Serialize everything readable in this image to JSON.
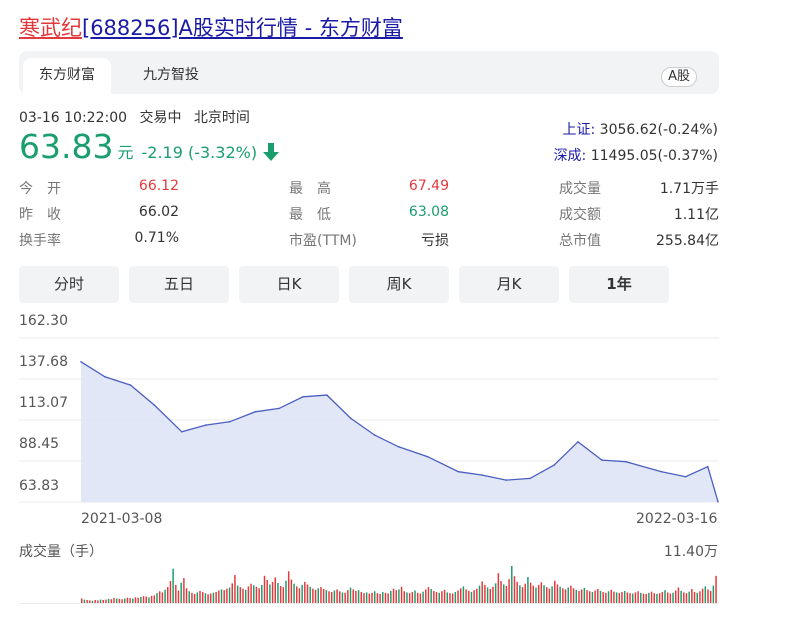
{
  "title": {
    "name": "寒武纪",
    "rest": "[688256]A股实时行情 - 东方财富"
  },
  "tabs": [
    {
      "label": "东方财富",
      "active": true
    },
    {
      "label": "九方智投",
      "active": false
    }
  ],
  "market_badge": "A股",
  "status": {
    "time": "03-16 10:22:00",
    "state": "交易中",
    "tz": "北京时间"
  },
  "quote": {
    "price": "63.83",
    "unit": "元",
    "change": "-2.19 (-3.32%)",
    "direction": "down",
    "color_down": "#1a9e6e",
    "color_up": "#e4393c"
  },
  "indices": [
    {
      "label": "上证:",
      "value": "3056.62(-0.24%)"
    },
    {
      "label": "深成:",
      "value": "11495.05(-0.37%)"
    }
  ],
  "stats": [
    [
      {
        "label": "今　开",
        "value": "66.12",
        "tone": "up"
      },
      {
        "label": "最　高",
        "value": "67.49",
        "tone": "up"
      },
      {
        "label": "成交量",
        "value": "1.71万手",
        "tone": "neutral"
      }
    ],
    [
      {
        "label": "昨　收",
        "value": "66.02",
        "tone": "neutral"
      },
      {
        "label": "最　低",
        "value": "63.08",
        "tone": "down"
      },
      {
        "label": "成交额",
        "value": "1.11亿",
        "tone": "neutral"
      }
    ],
    [
      {
        "label": "换手率",
        "value": "0.71%",
        "tone": "neutral"
      },
      {
        "label": "市盈(TTM)",
        "value": "亏损",
        "tone": "neutral"
      },
      {
        "label": "总市值",
        "value": "255.84亿",
        "tone": "neutral"
      }
    ]
  ],
  "periods": [
    {
      "label": "分时",
      "active": false
    },
    {
      "label": "五日",
      "active": false
    },
    {
      "label": "日K",
      "active": false
    },
    {
      "label": "周K",
      "active": false
    },
    {
      "label": "月K",
      "active": false
    },
    {
      "label": "1年",
      "active": true
    }
  ],
  "chart_data": {
    "type": "area",
    "y_ticks": [
      "162.30",
      "137.68",
      "113.07",
      "88.45",
      "63.83"
    ],
    "ylim": [
      63.83,
      162.3
    ],
    "x_labels": [
      "2021-03-08",
      "2022-03-16"
    ],
    "x": [
      "2021-03-08",
      "2021-03-22",
      "2021-04-06",
      "2021-04-20",
      "2021-05-06",
      "2021-05-20",
      "2021-06-03",
      "2021-06-18",
      "2021-07-02",
      "2021-07-16",
      "2021-07-30",
      "2021-08-13",
      "2021-08-27",
      "2021-09-10",
      "2021-09-27",
      "2021-10-15",
      "2021-10-29",
      "2021-11-12",
      "2021-11-26",
      "2021-12-10",
      "2021-12-24",
      "2022-01-07",
      "2022-01-21",
      "2022-02-11",
      "2022-02-25",
      "2022-03-10",
      "2022-03-16"
    ],
    "values": [
      148,
      139,
      134,
      122,
      106,
      110,
      112,
      118,
      120,
      127,
      128,
      114,
      104,
      97,
      91,
      82,
      80,
      77,
      78,
      86,
      100,
      89,
      88,
      82,
      79,
      85,
      64
    ],
    "color": "#4a5fc1",
    "fill": "#dfe4f7",
    "grid": true,
    "volume": {
      "title": "成交量（手）",
      "max_label": "11.40万",
      "colors": {
        "up": "#e4393c",
        "down": "#1a9e6e"
      },
      "values": [
        1.2,
        0.9,
        0.8,
        0.7,
        0.6,
        0.8,
        0.7,
        0.9,
        0.8,
        0.9,
        1.1,
        1.0,
        1.3,
        1.2,
        1.1,
        1.0,
        1.2,
        1.4,
        1.3,
        1.2,
        1.5,
        1.4,
        1.6,
        1.8,
        1.7,
        1.5,
        1.9,
        2.0,
        2.6,
        3.1,
        2.8,
        3.5,
        4.2,
        5.8,
        9.1,
        4.8,
        3.3,
        5.4,
        6.6,
        3.9,
        3.1,
        2.7,
        2.4,
        2.8,
        3.2,
        2.9,
        2.6,
        2.3,
        2.5,
        2.7,
        2.9,
        3.3,
        3.6,
        3.4,
        3.8,
        4.1,
        5.2,
        7.4,
        4.6,
        4.2,
        3.8,
        3.5,
        4.4,
        5.1,
        4.7,
        4.3,
        3.9,
        4.8,
        7.2,
        6.1,
        4.9,
        5.6,
        6.8,
        5.3,
        4.5,
        4.2,
        5.9,
        8.4,
        6.2,
        5.1,
        4.4,
        3.9,
        4.8,
        5.6,
        4.9,
        4.3,
        3.8,
        3.5,
        3.9,
        4.2,
        3.7,
        3.4,
        3.1,
        2.9,
        3.3,
        3.6,
        3.1,
        2.8,
        2.7,
        3.4,
        4.1,
        3.6,
        3.2,
        3.4,
        2.9,
        2.6,
        2.8,
        2.5,
        2.7,
        3.1,
        2.6,
        2.4,
        2.9,
        2.7,
        2.5,
        3.2,
        3.8,
        3.4,
        3.6,
        4.3,
        3.1,
        2.8,
        2.6,
        2.9,
        3.3,
        2.7,
        2.5,
        3.0,
        3.6,
        4.2,
        3.7,
        3.2,
        2.9,
        2.7,
        3.1,
        3.5,
        2.8,
        2.6,
        2.5,
        2.9,
        3.3,
        3.9,
        4.4,
        3.6,
        3.2,
        2.9,
        3.4,
        3.8,
        4.6,
        5.7,
        4.8,
        4.1,
        3.7,
        4.3,
        5.2,
        7.9,
        5.8,
        4.9,
        4.5,
        6.3,
        9.8,
        7.1,
        5.6,
        4.7,
        4.2,
        5.1,
        6.9,
        5.4,
        4.6,
        4.1,
        4.8,
        5.5,
        4.7,
        4.2,
        3.8,
        4.4,
        5.9,
        4.9,
        4.3,
        3.9,
        3.6,
        4.1,
        4.6,
        3.9,
        3.5,
        3.2,
        3.6,
        4.0,
        3.4,
        3.1,
        2.9,
        3.3,
        3.7,
        3.2,
        2.9,
        2.7,
        3.1,
        3.5,
        3.0,
        2.8,
        2.6,
        2.9,
        3.2,
        2.8,
        2.6,
        2.5,
        2.8,
        3.1,
        2.7,
        2.5,
        2.4,
        2.7,
        3.0,
        2.6,
        2.4,
        2.6,
        2.9,
        3.4,
        2.8,
        2.5,
        2.7,
        3.3,
        4.1,
        3.2,
        2.8,
        2.6,
        3.0,
        3.7,
        2.9,
        2.7,
        3.1,
        3.8,
        4.4,
        3.6,
        3.2,
        4.6,
        7.2
      ]
    }
  }
}
